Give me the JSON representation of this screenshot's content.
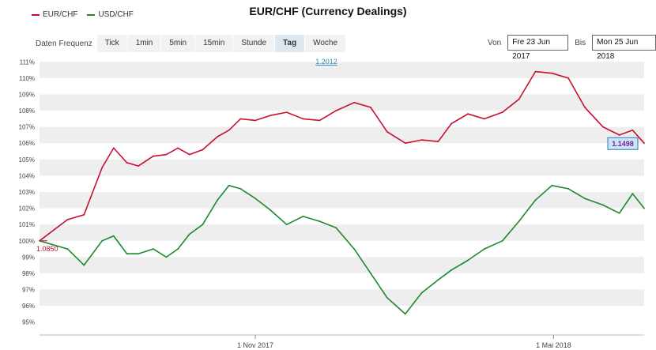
{
  "title": "EUR/CHF (Currency Dealings)",
  "legend": [
    {
      "name": "EUR/CHF",
      "color": "#c8102e"
    },
    {
      "name": "USD/CHF",
      "color": "#1a8a2e"
    }
  ],
  "toolbar": {
    "freq_label": "Daten Frequenz",
    "buttons": [
      "Tick",
      "1min",
      "5min",
      "15min",
      "Stunde",
      "Tag",
      "Woche"
    ],
    "active": "Tag",
    "from_label": "Von",
    "from_value": "Fre 23 Jun 2017",
    "to_label": "Bis",
    "to_value": "Mon 25 Jun 2018"
  },
  "annotations": {
    "high_label": "1.2012",
    "start_label": "1.0850",
    "current_label": "1.1498"
  },
  "chart_data": {
    "type": "line",
    "title": "EUR/CHF (Currency Dealings)",
    "xlabel": "",
    "ylabel": "",
    "ylim": [
      94.5,
      111.5
    ],
    "yticks": [
      "95%",
      "96%",
      "97%",
      "98%",
      "99%",
      "100%",
      "101%",
      "102%",
      "103%",
      "104%",
      "105%",
      "106%",
      "107%",
      "108%",
      "109%",
      "110%",
      "111%"
    ],
    "xticks": [
      "1 Nov 2017",
      "1 Mai 2018"
    ],
    "x": [
      "2017-06-23",
      "2017-07-10",
      "2017-07-20",
      "2017-07-31",
      "2017-08-07",
      "2017-08-15",
      "2017-08-22",
      "2017-08-31",
      "2017-09-08",
      "2017-09-15",
      "2017-09-22",
      "2017-09-30",
      "2017-10-09",
      "2017-10-16",
      "2017-10-23",
      "2017-11-01",
      "2017-11-10",
      "2017-11-20",
      "2017-11-30",
      "2017-12-10",
      "2017-12-20",
      "2017-12-31",
      "2018-01-10",
      "2018-01-20",
      "2018-01-31",
      "2018-02-10",
      "2018-02-20",
      "2018-02-28",
      "2018-03-10",
      "2018-03-20",
      "2018-03-31",
      "2018-04-10",
      "2018-04-20",
      "2018-04-30",
      "2018-05-10",
      "2018-05-20",
      "2018-05-31",
      "2018-06-10",
      "2018-06-18",
      "2018-06-25"
    ],
    "series": [
      {
        "name": "EUR/CHF",
        "color": "#c8102e",
        "values": [
          100.0,
          101.3,
          101.6,
          104.5,
          105.7,
          104.8,
          104.6,
          105.2,
          105.3,
          105.7,
          105.3,
          105.6,
          106.4,
          106.8,
          107.5,
          107.4,
          107.7,
          107.9,
          107.5,
          107.4,
          108.0,
          108.5,
          108.2,
          106.7,
          106.0,
          106.2,
          106.1,
          107.2,
          107.8,
          107.5,
          107.9,
          108.7,
          110.4,
          110.3,
          110.0,
          108.2,
          107.0,
          106.5,
          106.8,
          106.0
        ]
      },
      {
        "name": "USD/CHF",
        "color": "#1a8a2e",
        "values": [
          100.0,
          99.5,
          98.5,
          100.0,
          100.3,
          99.2,
          99.2,
          99.5,
          99.0,
          99.5,
          100.4,
          101.0,
          102.5,
          103.4,
          103.2,
          102.6,
          101.9,
          101.0,
          101.5,
          101.2,
          100.8,
          99.5,
          98.0,
          96.5,
          95.5,
          96.8,
          97.6,
          98.2,
          98.8,
          99.5,
          100.0,
          101.2,
          102.5,
          103.4,
          103.2,
          102.6,
          102.2,
          101.7,
          102.9,
          102.0
        ]
      }
    ]
  }
}
